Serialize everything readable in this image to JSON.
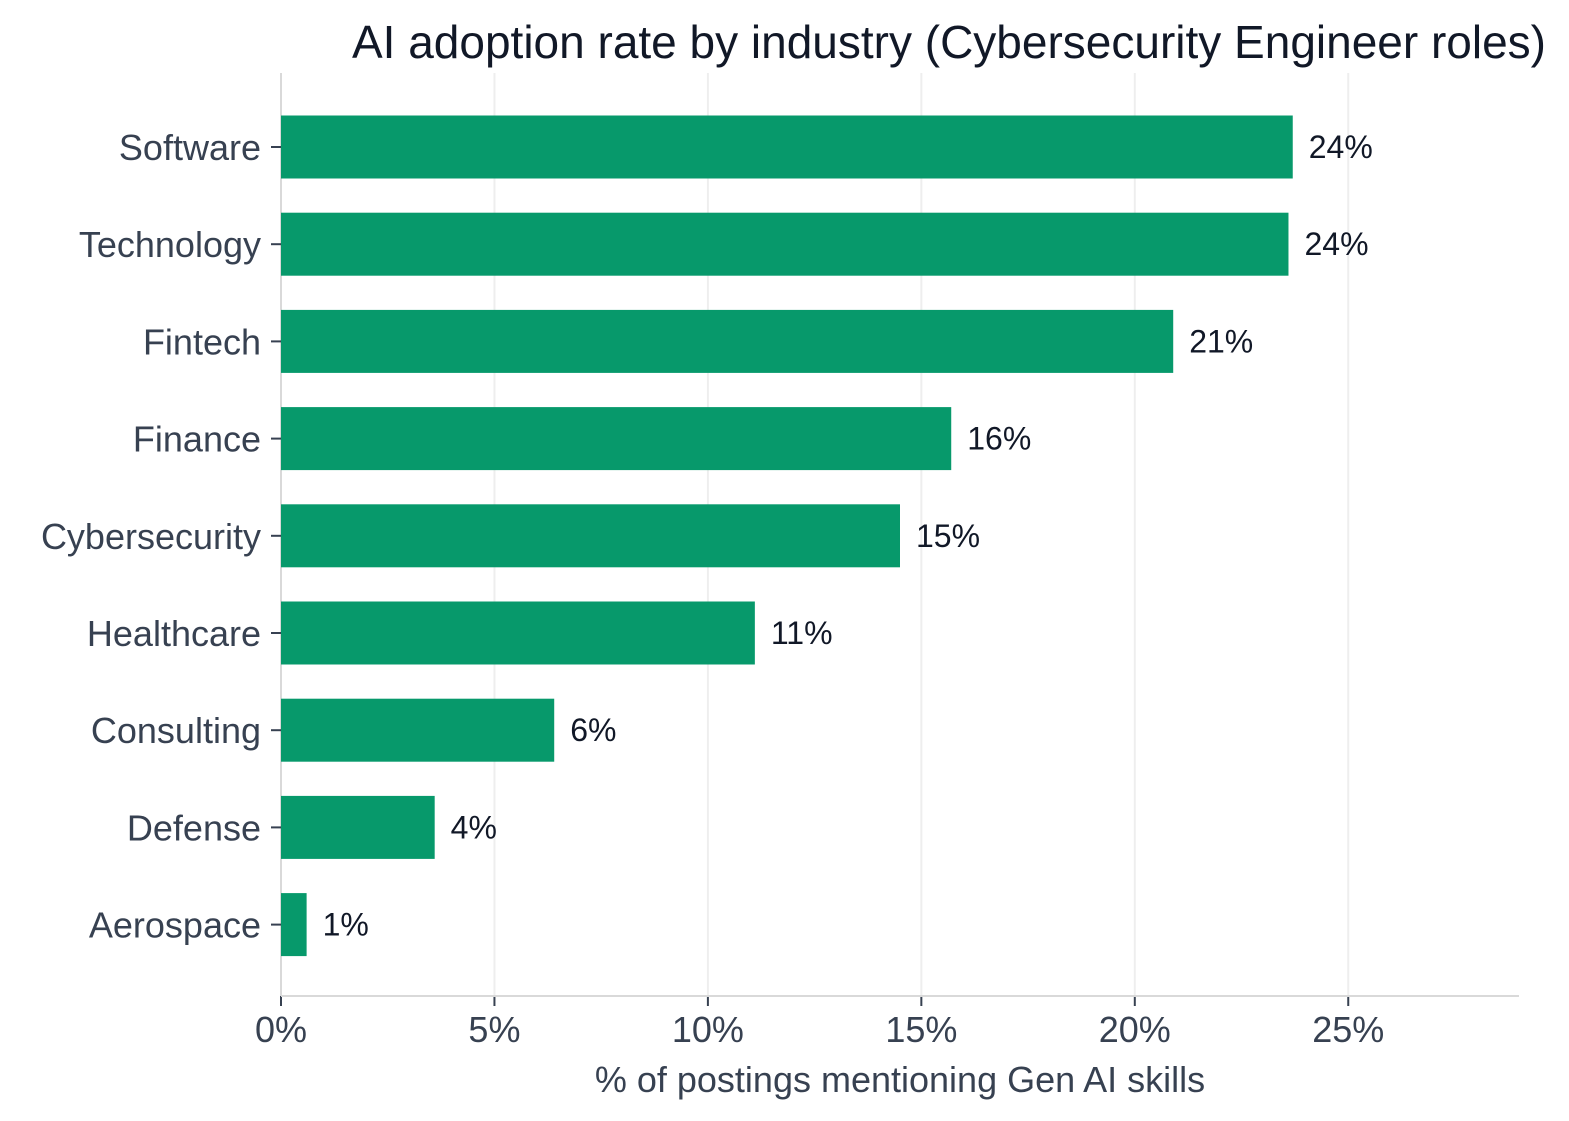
{
  "chart_data": {
    "type": "bar",
    "orientation": "horizontal",
    "title": "AI adoption rate by industry (Cybersecurity Engineer roles)",
    "xlabel": "% of postings mentioning Gen AI skills",
    "ylabel": "",
    "categories": [
      "Software",
      "Technology",
      "Fintech",
      "Finance",
      "Cybersecurity",
      "Healthcare",
      "Consulting",
      "Defense",
      "Aerospace"
    ],
    "values": [
      23.7,
      23.6,
      20.9,
      15.7,
      14.5,
      11.1,
      6.4,
      3.6,
      0.6
    ],
    "data_labels": [
      "24%",
      "24%",
      "21%",
      "16%",
      "15%",
      "11%",
      "6%",
      "4%",
      "1%"
    ],
    "xlim": [
      0,
      29
    ],
    "xticks": [
      0,
      5,
      10,
      15,
      20,
      25
    ],
    "xtick_labels": [
      "0%",
      "5%",
      "10%",
      "15%",
      "20%",
      "25%"
    ],
    "grid": "vertical",
    "legend": "none",
    "colors": {
      "bar": "#07996b",
      "grid": "#eeeeee",
      "axis": "#d9d9d9"
    }
  }
}
